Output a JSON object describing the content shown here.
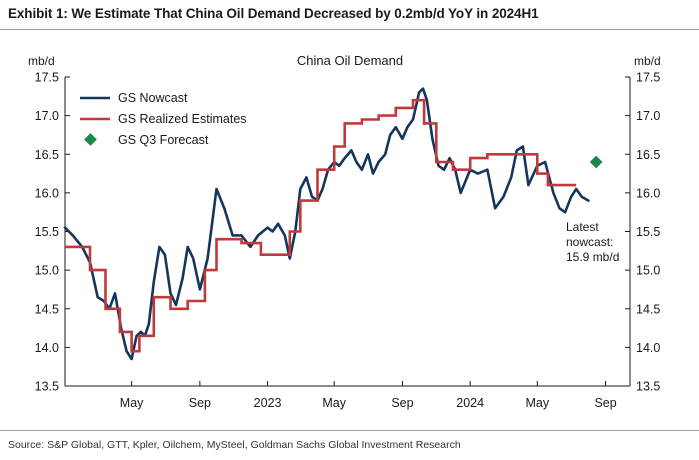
{
  "exhibit_title": "Exhibit 1: We Estimate That China Oil Demand Decreased by 0.2mb/d YoY in 2024H1",
  "source": "Source: S&P Global, GTT, Kpler, Oilchem, MySteel, Goldman Sachs Global Investment Research",
  "chart_data": {
    "type": "line",
    "title": "China Oil Demand",
    "ylabel_left": "mb/d",
    "ylabel_right": "mb/d",
    "ylim": [
      13.5,
      17.5
    ],
    "yticks": [
      "13.5",
      "14.0",
      "14.5",
      "15.0",
      "15.5",
      "16.0",
      "16.5",
      "17.0",
      "17.5"
    ],
    "ytick_values": [
      13.5,
      14.0,
      14.5,
      15.0,
      15.5,
      16.0,
      16.5,
      17.0,
      17.5
    ],
    "xlim": [
      "2022-01-01",
      "2024-10-15"
    ],
    "xticks": [
      {
        "label": "May",
        "date": "2022-05-01"
      },
      {
        "label": "Sep",
        "date": "2022-09-01"
      },
      {
        "label": "2023",
        "date": "2023-01-01"
      },
      {
        "label": "May",
        "date": "2023-05-01"
      },
      {
        "label": "Sep",
        "date": "2023-09-01"
      },
      {
        "label": "2024",
        "date": "2024-01-01"
      },
      {
        "label": "May",
        "date": "2024-05-01"
      },
      {
        "label": "Sep",
        "date": "2024-09-01"
      }
    ],
    "legend_position": "top-left",
    "annotation": [
      "Latest",
      "nowcast:",
      "15.9 mb/d"
    ],
    "series": [
      {
        "name": "GS Nowcast",
        "color": "#14365d",
        "kind": "line",
        "points": [
          [
            "2022-01-01",
            15.55
          ],
          [
            "2022-01-15",
            15.45
          ],
          [
            "2022-02-01",
            15.3
          ],
          [
            "2022-02-15",
            15.1
          ],
          [
            "2022-03-01",
            14.65
          ],
          [
            "2022-03-12",
            14.6
          ],
          [
            "2022-03-22",
            14.5
          ],
          [
            "2022-04-01",
            14.7
          ],
          [
            "2022-04-12",
            14.25
          ],
          [
            "2022-04-22",
            13.95
          ],
          [
            "2022-05-01",
            13.85
          ],
          [
            "2022-05-10",
            14.15
          ],
          [
            "2022-05-18",
            14.2
          ],
          [
            "2022-05-25",
            14.15
          ],
          [
            "2022-06-01",
            14.3
          ],
          [
            "2022-06-10",
            14.85
          ],
          [
            "2022-06-20",
            15.3
          ],
          [
            "2022-06-30",
            15.2
          ],
          [
            "2022-07-10",
            14.7
          ],
          [
            "2022-07-20",
            14.55
          ],
          [
            "2022-08-01",
            14.9
          ],
          [
            "2022-08-10",
            15.3
          ],
          [
            "2022-08-20",
            15.15
          ],
          [
            "2022-09-01",
            14.75
          ],
          [
            "2022-09-15",
            15.15
          ],
          [
            "2022-10-01",
            16.05
          ],
          [
            "2022-10-15",
            15.8
          ],
          [
            "2022-10-30",
            15.45
          ],
          [
            "2022-11-15",
            15.45
          ],
          [
            "2022-12-01",
            15.3
          ],
          [
            "2022-12-15",
            15.45
          ],
          [
            "2023-01-01",
            15.55
          ],
          [
            "2023-01-10",
            15.5
          ],
          [
            "2023-01-20",
            15.6
          ],
          [
            "2023-02-01",
            15.45
          ],
          [
            "2023-02-10",
            15.15
          ],
          [
            "2023-02-20",
            15.5
          ],
          [
            "2023-03-01",
            16.05
          ],
          [
            "2023-03-12",
            16.2
          ],
          [
            "2023-03-22",
            15.95
          ],
          [
            "2023-04-01",
            15.9
          ],
          [
            "2023-04-10",
            16.05
          ],
          [
            "2023-04-20",
            16.3
          ],
          [
            "2023-05-01",
            16.4
          ],
          [
            "2023-05-10",
            16.35
          ],
          [
            "2023-05-20",
            16.45
          ],
          [
            "2023-06-01",
            16.55
          ],
          [
            "2023-06-10",
            16.4
          ],
          [
            "2023-06-20",
            16.3
          ],
          [
            "2023-07-01",
            16.5
          ],
          [
            "2023-07-10",
            16.25
          ],
          [
            "2023-07-20",
            16.4
          ],
          [
            "2023-08-01",
            16.5
          ],
          [
            "2023-08-10",
            16.75
          ],
          [
            "2023-08-20",
            16.85
          ],
          [
            "2023-09-01",
            16.7
          ],
          [
            "2023-09-10",
            16.85
          ],
          [
            "2023-09-20",
            16.95
          ],
          [
            "2023-10-01",
            17.3
          ],
          [
            "2023-10-08",
            17.35
          ],
          [
            "2023-10-15",
            17.2
          ],
          [
            "2023-10-25",
            16.7
          ],
          [
            "2023-11-05",
            16.35
          ],
          [
            "2023-11-15",
            16.3
          ],
          [
            "2023-11-25",
            16.45
          ],
          [
            "2023-12-05",
            16.3
          ],
          [
            "2023-12-15",
            16.0
          ],
          [
            "2024-01-01",
            16.3
          ],
          [
            "2024-01-15",
            16.25
          ],
          [
            "2024-02-01",
            16.3
          ],
          [
            "2024-02-15",
            15.8
          ],
          [
            "2024-03-01",
            15.95
          ],
          [
            "2024-03-15",
            16.2
          ],
          [
            "2024-03-25",
            16.55
          ],
          [
            "2024-04-05",
            16.6
          ],
          [
            "2024-04-15",
            16.1
          ],
          [
            "2024-05-01",
            16.35
          ],
          [
            "2024-05-15",
            16.4
          ],
          [
            "2024-05-30",
            16.0
          ],
          [
            "2024-06-10",
            15.8
          ],
          [
            "2024-06-20",
            15.75
          ],
          [
            "2024-07-01",
            15.95
          ],
          [
            "2024-07-10",
            16.05
          ],
          [
            "2024-07-20",
            15.95
          ],
          [
            "2024-08-01",
            15.9
          ]
        ]
      },
      {
        "name": "GS Realized Estimates",
        "color": "#c0393b",
        "kind": "step",
        "points": [
          [
            "2022-01-01",
            15.3
          ],
          [
            "2022-02-15",
            15.0
          ],
          [
            "2022-03-15",
            14.5
          ],
          [
            "2022-04-10",
            14.2
          ],
          [
            "2022-05-01",
            13.95
          ],
          [
            "2022-05-15",
            14.15
          ],
          [
            "2022-06-10",
            14.65
          ],
          [
            "2022-07-10",
            14.5
          ],
          [
            "2022-08-10",
            14.6
          ],
          [
            "2022-09-10",
            15.0
          ],
          [
            "2022-10-01",
            15.4
          ],
          [
            "2022-11-15",
            15.35
          ],
          [
            "2022-12-20",
            15.2
          ],
          [
            "2023-02-10",
            15.5
          ],
          [
            "2023-03-01",
            15.9
          ],
          [
            "2023-04-01",
            16.3
          ],
          [
            "2023-05-01",
            16.6
          ],
          [
            "2023-05-20",
            16.9
          ],
          [
            "2023-06-20",
            16.95
          ],
          [
            "2023-07-20",
            17.0
          ],
          [
            "2023-08-20",
            17.1
          ],
          [
            "2023-09-20",
            17.2
          ],
          [
            "2023-10-10",
            16.9
          ],
          [
            "2023-11-01",
            16.4
          ],
          [
            "2023-12-01",
            16.3
          ],
          [
            "2024-01-01",
            16.45
          ],
          [
            "2024-02-01",
            16.5
          ],
          [
            "2024-03-01",
            16.5
          ],
          [
            "2024-04-01",
            16.5
          ],
          [
            "2024-05-01",
            16.25
          ],
          [
            "2024-05-20",
            16.1
          ],
          [
            "2024-06-15",
            16.1
          ],
          [
            "2024-07-10",
            16.1
          ]
        ]
      },
      {
        "name": "GS Q3 Forecast",
        "color": "#1a8a4a",
        "kind": "marker",
        "points": [
          [
            "2024-08-15",
            16.4
          ]
        ]
      }
    ]
  }
}
